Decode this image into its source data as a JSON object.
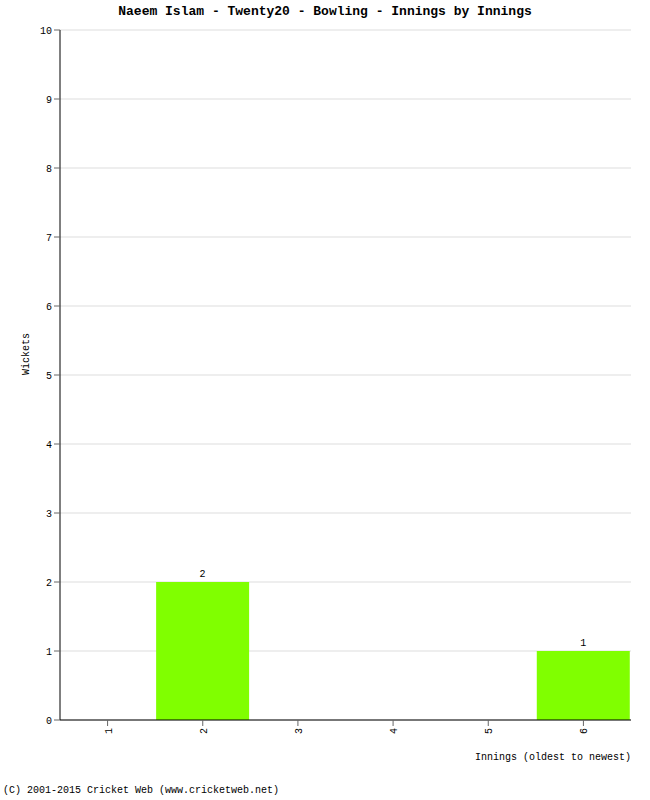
{
  "chart_data": {
    "type": "bar",
    "title": "Naeem Islam - Twenty20 - Bowling - Innings by Innings",
    "x_label": "Innings (oldest to newest)",
    "y_label": "Wickets",
    "annotation": "(C) 2001-2015 Cricket Web (www.cricketweb.net)",
    "categories": [
      "1",
      "2",
      "3",
      "4",
      "5",
      "6"
    ],
    "values": [
      0,
      2,
      0,
      0,
      0,
      1
    ],
    "color": "#80ff00",
    "ylim": [
      0,
      10
    ],
    "yticks": [
      0,
      1,
      2,
      3,
      4,
      5,
      6,
      7,
      8,
      9,
      10
    ],
    "grid": true,
    "data_labels": true
  }
}
